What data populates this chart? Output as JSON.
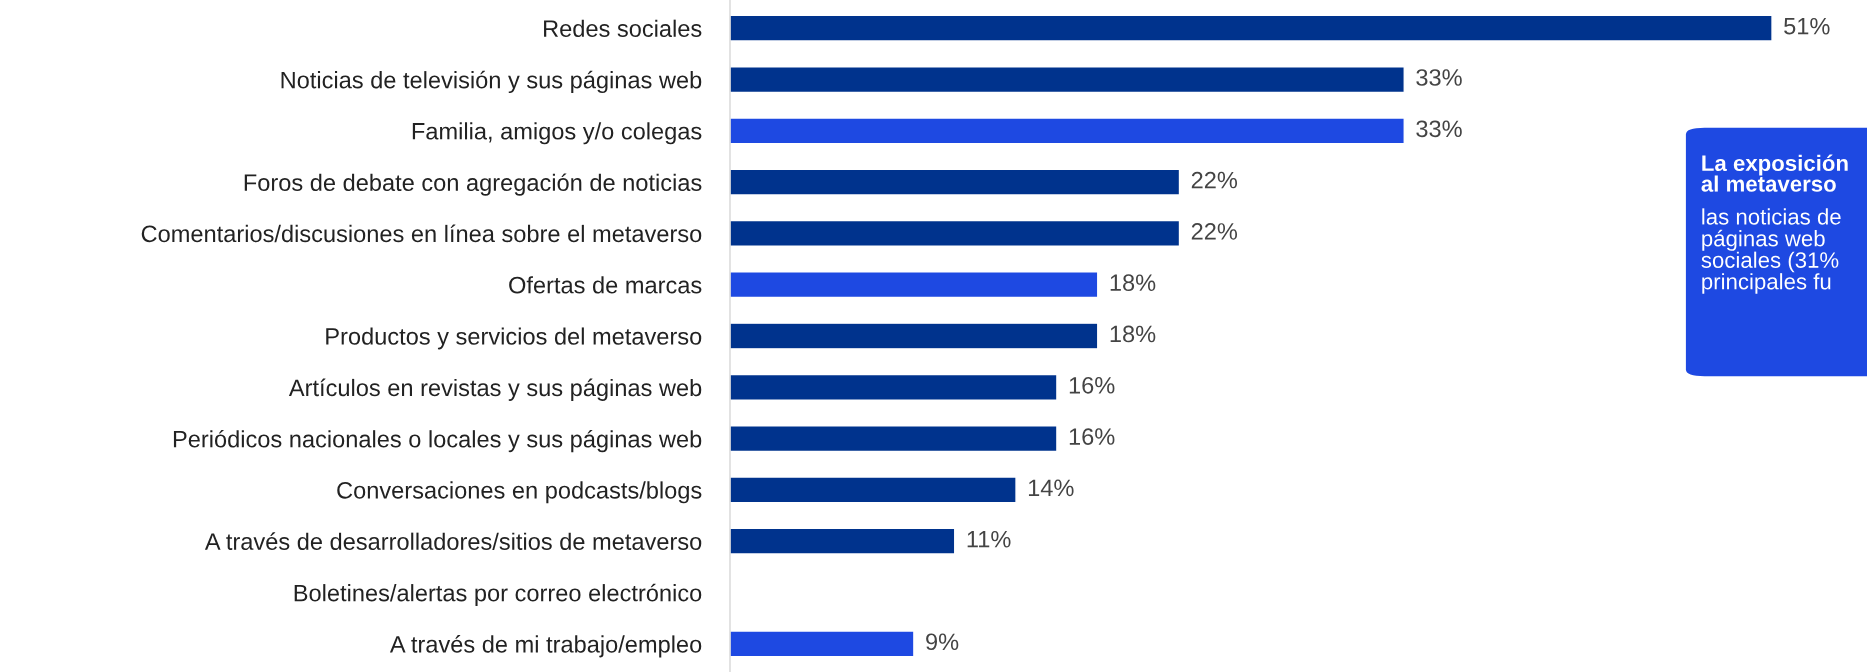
{
  "chart_data": {
    "type": "bar",
    "orientation": "horizontal",
    "grid": false,
    "legend": false,
    "categories": [
      "Redes sociales",
      "Noticias de televisión y sus páginas web",
      "Familia, amigos y/o colegas",
      "Foros de debate con agregación de noticias",
      "Comentarios/discusiones en línea sobre el metaverso",
      "Ofertas de marcas",
      "Productos y servicios del metaverso",
      "Artículos en revistas y sus páginas web",
      "Periódicos nacionales o locales y sus páginas web",
      "Conversaciones en podcasts/blogs",
      "A través de desarrolladores/sitios de metaverso",
      "Boletines/alertas por correo electrónico",
      "A través de mi trabajo/empleo"
    ],
    "values": [
      51,
      33,
      33,
      22,
      22,
      18,
      18,
      16,
      16,
      14,
      11,
      null,
      9
    ],
    "value_labels": [
      "51%",
      "33%",
      "33%",
      "22%",
      "22%",
      "18%",
      "18%",
      "16%",
      "16%",
      "14%",
      "11%",
      null,
      "9%"
    ],
    "colors": [
      "#00338d",
      "#00338d",
      "#1e49e2",
      "#00338d",
      "#00338d",
      "#1e49e2",
      "#00338d",
      "#00338d",
      "#00338d",
      "#00338d",
      "#00338d",
      "#00338d",
      "#1e49e2"
    ],
    "annotations": [
      "La exposición\nal metaverso",
      "las noticias de\npáginas web\nsociales (31%\nprincipales fu"
    ]
  }
}
